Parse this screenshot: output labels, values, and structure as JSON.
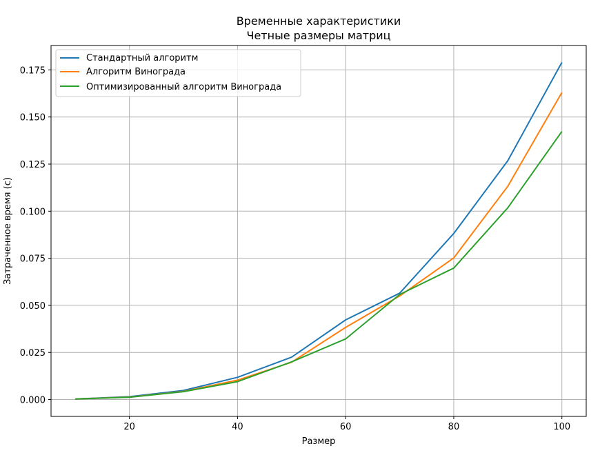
{
  "chart_data": {
    "type": "line",
    "title": "Временные характеристики",
    "subtitle": "Четные размеры матриц",
    "xlabel": "Размер",
    "ylabel": "Затраченное время (с)",
    "x": [
      10,
      20,
      30,
      40,
      50,
      60,
      70,
      80,
      90,
      100
    ],
    "xlim": [
      5.5,
      104.5
    ],
    "ylim": [
      -0.00895,
      0.18795
    ],
    "xticks": [
      20,
      40,
      60,
      80,
      100
    ],
    "xtick_labels": [
      "20",
      "40",
      "60",
      "80",
      "100"
    ],
    "yticks": [
      0.0,
      0.025,
      0.05,
      0.075,
      0.1,
      0.125,
      0.15,
      0.175
    ],
    "ytick_labels": [
      "0.000",
      "0.025",
      "0.050",
      "0.075",
      "0.100",
      "0.125",
      "0.150",
      "0.175"
    ],
    "grid": true,
    "legend_position": "upper-left",
    "series": [
      {
        "name": "Стандартный алгоритм",
        "color": "#1f77b4",
        "values": [
          0.0003,
          0.0015,
          0.0048,
          0.0118,
          0.0225,
          0.0423,
          0.0565,
          0.0882,
          0.1268,
          0.179
        ]
      },
      {
        "name": "Алгоритм Винограда",
        "color": "#ff7f0e",
        "values": [
          0.0003,
          0.0013,
          0.0043,
          0.0103,
          0.0198,
          0.0383,
          0.055,
          0.0752,
          0.1132,
          0.163
        ]
      },
      {
        "name": "Оптимизированный алгоритм Винограда",
        "color": "#2ca02c",
        "values": [
          0.0003,
          0.0012,
          0.0042,
          0.0095,
          0.02,
          0.0322,
          0.0558,
          0.0698,
          0.1018,
          0.1423
        ]
      }
    ],
    "colors": {
      "grid": "#b0b0b0",
      "axis": "#000000",
      "legend_border": "#cccccc"
    }
  }
}
